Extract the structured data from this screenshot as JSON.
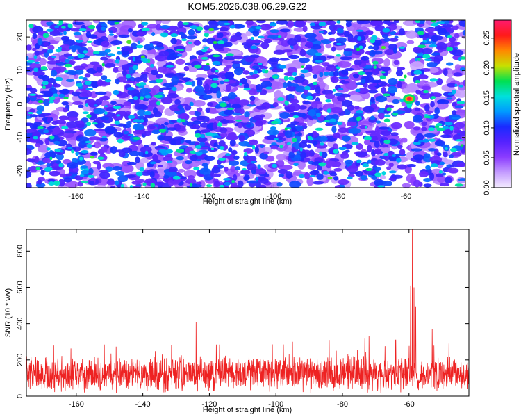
{
  "title": "KOM5.2026.038.06.29.G22",
  "colors": {
    "signal_line": "#ee2222",
    "heatmap_background": "#ffffff",
    "colormap": [
      "#f4ecff",
      "#c49cff",
      "#8b3cff",
      "#5522ff",
      "#1a2bff",
      "#009aff",
      "#00e0dc",
      "#00e050",
      "#c8e000",
      "#ff8800",
      "#ff1a1a",
      "#ff1a6e"
    ]
  },
  "chart_data": [
    {
      "type": "heatmap",
      "xlabel": "Height of straight line (km)",
      "ylabel": "Frequency (Hz)",
      "xlim": [
        -175,
        -42
      ],
      "ylim": [
        -25,
        25
      ],
      "x_ticks": [
        -160,
        -140,
        -120,
        -100,
        -80,
        -60
      ],
      "y_ticks": [
        -20,
        -10,
        0,
        10,
        20
      ],
      "colorbar": {
        "label": "Normalized spectral amplitude",
        "range": [
          0.0,
          0.28
        ],
        "ticks": [
          "0.00",
          "0.05",
          "0.10",
          "0.15",
          "0.20",
          "0.25"
        ]
      },
      "peak": {
        "x": -59,
        "y": 1.5,
        "amplitude": 0.27
      },
      "quiet_band_x": [
        -61,
        -57
      ]
    },
    {
      "type": "line",
      "xlabel": "Height of straight line (km)",
      "ylabel": "SNR (10 * v/v)",
      "xlim": [
        -175,
        -42
      ],
      "ylim": [
        0,
        920
      ],
      "x_ticks": [
        -160,
        -140,
        -120,
        -100,
        -80,
        -60
      ],
      "y_ticks": [
        0,
        200,
        400,
        600,
        800
      ],
      "baseline": 120,
      "noise_amplitude": 110,
      "spikes": [
        {
          "x": -124,
          "y": 410
        },
        {
          "x": -95,
          "y": 300
        },
        {
          "x": -84,
          "y": 310
        },
        {
          "x": -72,
          "y": 330
        },
        {
          "x": -64,
          "y": 310
        },
        {
          "x": -59.5,
          "y": 610
        },
        {
          "x": -59,
          "y": 920
        },
        {
          "x": -58.5,
          "y": 600
        },
        {
          "x": -58,
          "y": 490
        },
        {
          "x": -53,
          "y": 370
        },
        {
          "x": -48,
          "y": 290
        }
      ]
    }
  ]
}
